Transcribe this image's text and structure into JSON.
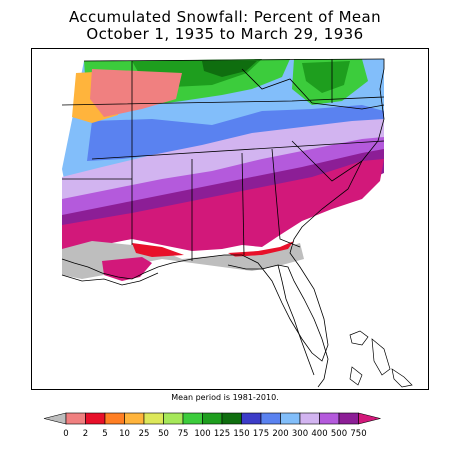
{
  "title": "Accumulated Snowfall: Percent of Mean",
  "subtitle": "October 1, 1935 to March 29, 1936",
  "mean_period_note": "Mean period is 1981-2010.",
  "legend": {
    "labels": [
      "0",
      "2",
      "5",
      "10",
      "25",
      "50",
      "75",
      "100",
      "125",
      "150",
      "175",
      "200",
      "300",
      "400",
      "500",
      "750"
    ],
    "colors": [
      "#bebebe",
      "#f08080",
      "#e8102a",
      "#ff7f24",
      "#ffb43c",
      "#dde85a",
      "#a6e85a",
      "#3ccc3c",
      "#1e9e1e",
      "#0f6e0f",
      "#3c3cc8",
      "#5a82f0",
      "#82befa",
      "#d2b4f0",
      "#b45adc",
      "#8c1e96",
      "#d2187a"
    ]
  },
  "map": {
    "colors": {
      "purple_dark": "#8c1e96",
      "purple": "#b45adc",
      "lavender": "#d2b4f0",
      "light_blue": "#82befa",
      "blue": "#5a82f0",
      "dark_green": "#0f6e0f",
      "green": "#1e9e1e",
      "bright_green": "#3ccc3c",
      "orange": "#ffb43c",
      "coral": "#f08080",
      "red": "#e8102a",
      "magenta": "#d2187a",
      "gray": "#bebebe"
    }
  }
}
